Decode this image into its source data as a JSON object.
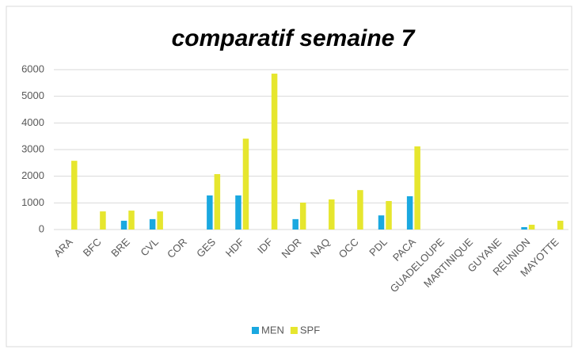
{
  "chart_data": {
    "type": "bar",
    "title": "comparatif semaine 7",
    "categories": [
      "ARA",
      "BFC",
      "BRE",
      "CVL",
      "COR",
      "GES",
      "HDF",
      "IDF",
      "NOR",
      "NAQ",
      "OCC",
      "PDL",
      "PACA",
      "GUADELOUPE",
      "MARTINIQUE",
      "GUYANE",
      "REUNION",
      "MAYOTTE"
    ],
    "series": [
      {
        "name": "MEN",
        "color": "#1aa8e0",
        "values": [
          0,
          0,
          330,
          390,
          0,
          1280,
          1280,
          0,
          390,
          0,
          0,
          530,
          1250,
          0,
          0,
          0,
          90,
          0
        ]
      },
      {
        "name": "SPF",
        "color": "#e6e62e",
        "values": [
          2580,
          680,
          710,
          680,
          0,
          2080,
          3410,
          5850,
          1010,
          1130,
          1480,
          1070,
          3120,
          0,
          0,
          0,
          180,
          330
        ]
      }
    ],
    "ylim": [
      0,
      6000
    ],
    "yticks": [
      0,
      1000,
      2000,
      3000,
      4000,
      5000,
      6000
    ],
    "grid": true,
    "legend": "bottom"
  }
}
